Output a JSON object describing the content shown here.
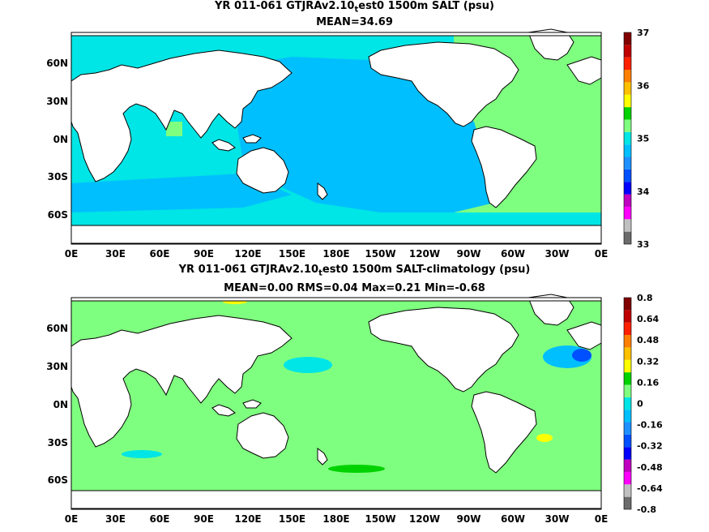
{
  "panel1": {
    "title_pre": "YR 011-061 GTJRAv2.10",
    "title_sub": "t",
    "title_post": "est0 1500m SALT (psu)",
    "subtitle": "MEAN=34.69",
    "colorbar": {
      "labels": [
        "37",
        "36",
        "35",
        "34",
        "33"
      ],
      "colors": [
        "#6b6b6b",
        "#c0c0c0",
        "#ff00ff",
        "#c000c0",
        "#0000ff",
        "#0050ff",
        "#1e90ff",
        "#00bfff",
        "#00e5e5",
        "#7fff7f",
        "#00d200",
        "#ffff00",
        "#ffc000",
        "#ff8000",
        "#ff2000",
        "#c00000",
        "#800000"
      ]
    }
  },
  "panel2": {
    "title_pre": "YR 011-061 GTJRAv2.10",
    "title_sub": "t",
    "title_post": "est0 1500m SALT-climatology (psu)",
    "subtitle": "MEAN=0.00   RMS=0.04   Max=0.21   Min=-0.68",
    "colorbar": {
      "labels": [
        "0.8",
        "0.64",
        "0.48",
        "0.32",
        "0.16",
        "0",
        "-0.16",
        "-0.32",
        "-0.48",
        "-0.64",
        "-0.8"
      ],
      "colors": [
        "#6b6b6b",
        "#c0c0c0",
        "#ff00ff",
        "#c000c0",
        "#0000ff",
        "#0050ff",
        "#1e90ff",
        "#00bfff",
        "#00e5e5",
        "#7fff7f",
        "#00d200",
        "#ffff00",
        "#ffc000",
        "#ff8000",
        "#ff2000",
        "#c00000",
        "#800000"
      ]
    }
  },
  "axes": {
    "x_labels": [
      "0E",
      "30E",
      "60E",
      "90E",
      "120E",
      "150E",
      "180E",
      "150W",
      "120W",
      "90W",
      "60W",
      "30W",
      "0E"
    ],
    "y_labels": [
      "60N",
      "30N",
      "0N",
      "30S",
      "60S"
    ]
  },
  "colors": {
    "pacific_salt": "#00bfff",
    "indian_salt": "#00e5e5",
    "atlantic_salt": "#7fff7f",
    "anomaly_base": "#7fff7f",
    "land": "#ffffff",
    "coast": "#000000"
  }
}
